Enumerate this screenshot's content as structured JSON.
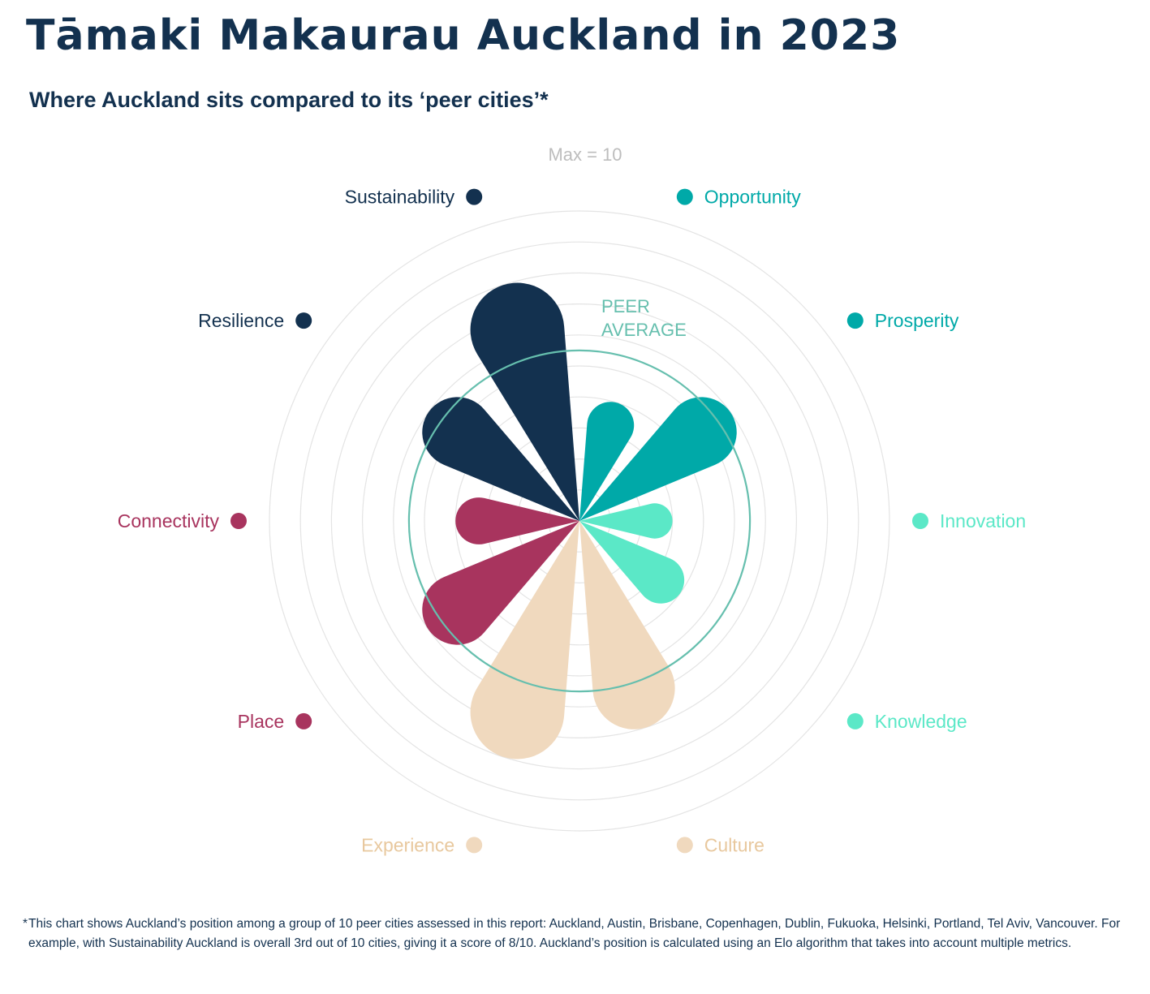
{
  "title": "Tāmaki Makaurau Auckland in 2023",
  "subtitle": "Where Auckland sits compared to its ‘peer cities’*",
  "footnote": {
    "marker": "*",
    "text": "This chart shows Auckland’s position among a group of 10 peer cities assessed in this report: Auckland, Austin, Brisbane, Copenhagen, Dublin, Fukuoka, Helsinki, Portland, Tel Aviv, Vancouver. For example, with Sustainability Auckland is overall 3rd out of 10 cities, giving it a score of 8/10. Auckland’s position is calculated using an Elo algorithm that takes into account multiple metrics."
  },
  "chart_data": {
    "type": "radial-bar",
    "max_label": "Max = 10",
    "max": 10,
    "peer_average": {
      "label_line1": "PEER",
      "label_line2": "AVERAGE",
      "value": 5.5,
      "color": "#66bfae"
    },
    "grid": true,
    "categories": [
      {
        "name": "Opportunity",
        "value": 4,
        "color": "#00a9a8"
      },
      {
        "name": "Prosperity",
        "value": 6,
        "color": "#00a9a8"
      },
      {
        "name": "Innovation",
        "value": 3,
        "color": "#5be8c7"
      },
      {
        "name": "Knowledge",
        "value": 4,
        "color": "#5be8c7"
      },
      {
        "name": "Culture",
        "value": 7,
        "color": "#f0d9be"
      },
      {
        "name": "Experience",
        "value": 8,
        "color": "#f0d9be"
      },
      {
        "name": "Place",
        "value": 6,
        "color": "#a8345e"
      },
      {
        "name": "Connectivity",
        "value": 4,
        "color": "#a8345e"
      },
      {
        "name": "Resilience",
        "value": 6,
        "color": "#13314f"
      },
      {
        "name": "Sustainability",
        "value": 8,
        "color": "#13314f"
      }
    ],
    "label_colors": {
      "Opportunity": "#00a9a8",
      "Prosperity": "#00a9a8",
      "Innovation": "#5be8c7",
      "Knowledge": "#5be8c7",
      "Culture": "#e8c89e",
      "Experience": "#e8c89e",
      "Place": "#a8345e",
      "Connectivity": "#a8345e",
      "Resilience": "#13314f",
      "Sustainability": "#13314f"
    }
  }
}
